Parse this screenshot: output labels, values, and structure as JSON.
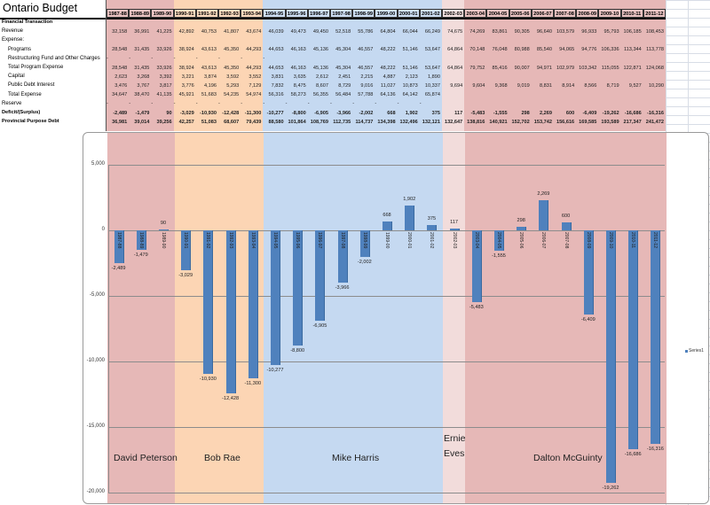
{
  "title": "Ontario Budget",
  "colors": {
    "peterson": "#e6b8b7",
    "rae": "#fcd5b4",
    "harris": "#c5d9f1",
    "eves": "#f2dcdb",
    "mcguinty": "#e6b8b7",
    "bar": "#4f81bd"
  },
  "years": [
    "1987-88",
    "1988-89",
    "1989-90",
    "1990-91",
    "1991-92",
    "1992-93",
    "1993-94",
    "1994-95",
    "1995-96",
    "1996-97",
    "1997-98",
    "1998-99",
    "1999-00",
    "2000-01",
    "2001-02",
    "2002-03",
    "2003-04",
    "2004-05",
    "2005-06",
    "2006-07",
    "2007-08",
    "2008-09",
    "2009-10",
    "2010-11",
    "2011-12"
  ],
  "rows": [
    {
      "label": "Financial Transaction",
      "bold": true,
      "indent": false,
      "values": []
    },
    {
      "label": "Revenue",
      "bold": false,
      "indent": false,
      "values": [
        "32,158",
        "36,991",
        "41,225",
        "42,892",
        "40,753",
        "41,807",
        "43,674",
        "46,039",
        "49,473",
        "49,450",
        "52,518",
        "55,786",
        "64,804",
        "66,044",
        "66,249",
        "74,675",
        "74,269",
        "83,861",
        "90,305",
        "96,640",
        "103,579",
        "96,933",
        "95,793",
        "106,185",
        "108,453"
      ]
    },
    {
      "label": "Expense:",
      "bold": false,
      "indent": false,
      "values": []
    },
    {
      "label": "Programs",
      "bold": false,
      "indent": true,
      "values": [
        "28,548",
        "31,435",
        "33,926",
        "38,924",
        "43,613",
        "45,350",
        "44,293",
        "44,653",
        "46,163",
        "45,136",
        "45,304",
        "46,557",
        "48,222",
        "51,146",
        "53,647",
        "64,864",
        "70,148",
        "76,048",
        "80,988",
        "85,540",
        "94,065",
        "94,776",
        "106,336",
        "113,344",
        "113,778"
      ]
    },
    {
      "label": "Restructuring Fund and Other Charges",
      "bold": false,
      "indent": true,
      "values": [
        "-",
        "-",
        "-",
        "-",
        "-",
        "-",
        "-",
        "-"
      ]
    },
    {
      "label": "Total Program Expense",
      "bold": false,
      "indent": true,
      "values": [
        "28,548",
        "31,435",
        "33,926",
        "38,924",
        "43,613",
        "45,350",
        "44,293",
        "44,653",
        "46,163",
        "45,136",
        "45,304",
        "46,557",
        "48,222",
        "51,146",
        "53,647",
        "64,864",
        "79,752",
        "85,416",
        "90,007",
        "94,971",
        "102,979",
        "103,342",
        "115,055",
        "122,871",
        "124,068"
      ]
    },
    {
      "label": "Capital",
      "bold": false,
      "indent": true,
      "values": [
        "2,623",
        "3,268",
        "3,392",
        "3,221",
        "3,874",
        "3,592",
        "3,552",
        "3,831",
        "3,635",
        "2,612",
        "2,451",
        "2,215",
        "4,887",
        "2,123",
        "1,890"
      ]
    },
    {
      "label": "Public Debt Interest",
      "bold": false,
      "indent": true,
      "values": [
        "3,476",
        "3,767",
        "3,817",
        "3,776",
        "4,196",
        "5,293",
        "7,129",
        "7,832",
        "8,475",
        "8,607",
        "8,729",
        "9,016",
        "11,027",
        "10,873",
        "10,337",
        "9,694",
        "9,604",
        "9,368",
        "9,019",
        "8,831",
        "8,914",
        "8,566",
        "8,719",
        "9,527",
        "10,290"
      ]
    },
    {
      "label": "Total Expense",
      "bold": false,
      "indent": true,
      "values": [
        "34,647",
        "38,470",
        "41,135",
        "45,921",
        "51,683",
        "54,235",
        "54,974",
        "56,316",
        "58,273",
        "56,355",
        "56,484",
        "57,788",
        "64,136",
        "64,142",
        "65,874"
      ]
    },
    {
      "label": "Reserve",
      "bold": false,
      "indent": false,
      "values": [
        "-",
        "-",
        "-",
        "-",
        "-",
        "-",
        "-",
        "-",
        "-",
        "-",
        "-",
        "-",
        "-",
        "-",
        "-"
      ]
    },
    {
      "label": "Deficit/(Surplus)",
      "bold": true,
      "indent": false,
      "values": [
        "-2,489",
        "-1,479",
        "90",
        "-3,029",
        "-10,930",
        "-12,428",
        "-11,300",
        "-10,277",
        "-8,800",
        "-6,905",
        "-3,966",
        "-2,002",
        "668",
        "1,902",
        "375",
        "117",
        "-5,483",
        "-1,555",
        "298",
        "2,269",
        "600",
        "-6,409",
        "-19,262",
        "-16,686",
        "-16,316"
      ]
    },
    {
      "label": "Provincial Purpose Debt",
      "bold": true,
      "indent": false,
      "values": [
        "36,981",
        "39,014",
        "39,256",
        "42,257",
        "51,083",
        "68,607",
        "79,439",
        "88,580",
        "101,864",
        "108,769",
        "112,735",
        "114,737",
        "134,398",
        "132,496",
        "132,121",
        "132,647",
        "138,816",
        "140,921",
        "152,702",
        "153,742",
        "156,616",
        "169,585",
        "193,589",
        "217,347",
        "241,472"
      ]
    }
  ],
  "premiers": [
    {
      "name": "David Peterson",
      "color": "peterson",
      "from": 0,
      "to": 2
    },
    {
      "name": "Bob Rae",
      "color": "rae",
      "from": 3,
      "to": 6
    },
    {
      "name": "Mike Harris",
      "color": "harris",
      "from": 7,
      "to": 14
    },
    {
      "name": "Ernie Eves",
      "color": "eves",
      "from": 15,
      "to": 15
    },
    {
      "name": "Dalton McGuinty",
      "color": "mcguinty",
      "from": 16,
      "to": 24
    }
  ],
  "chart_data": {
    "type": "bar",
    "categories": [
      "1987-88",
      "1988-89",
      "1989-90",
      "1990-91",
      "1991-92",
      "1992-93",
      "1993-94",
      "1994-95",
      "1995-96",
      "1996-97",
      "1997-98",
      "1998-99",
      "1999-00",
      "2000-01",
      "2001-02",
      "2002-03",
      "2003-04",
      "2004-05",
      "2005-06",
      "2006-07",
      "2007-08",
      "2008-09",
      "2009-10",
      "2010-11",
      "2011-12"
    ],
    "series": [
      {
        "name": "Series1",
        "values": [
          -2489,
          -1479,
          90,
          -3029,
          -10930,
          -12428,
          -11300,
          -10277,
          -8800,
          -6905,
          -3966,
          -2002,
          668,
          1902,
          375,
          117,
          -5483,
          -1555,
          298,
          2269,
          600,
          -6409,
          -19262,
          -16686,
          -16316
        ]
      }
    ],
    "data_labels": [
      "-2,489",
      "-1,479",
      "90",
      "-3,029",
      "-10,930",
      "-12,428",
      "-11,300",
      "-10,277",
      "-8,800",
      "-6,905",
      "-3,966",
      "-2,002",
      "668",
      "1,902",
      "375",
      "117",
      "-5,483",
      "-1,555",
      "298",
      "2,269",
      "600",
      "-6,409",
      "-19,262",
      "-16,686",
      "-16,316"
    ],
    "yticks": [
      5000,
      0,
      -5000,
      -10000,
      -15000,
      -20000
    ],
    "ytick_labels": [
      "5,000",
      "0",
      "-5,000",
      "-10,000",
      "-15,000",
      "-20,000"
    ],
    "ylim": [
      -20000,
      5000
    ],
    "grid": true,
    "legend": "right",
    "title": "",
    "xlabel": "",
    "ylabel": ""
  }
}
